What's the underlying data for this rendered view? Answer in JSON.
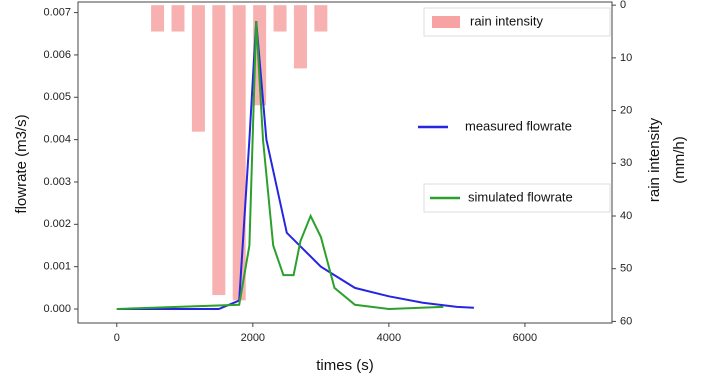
{
  "chart_data": {
    "type": "line",
    "x_label": "times (s)",
    "y_label": "flowrate (m3/s)",
    "y2_label": [
      "rain intensity",
      "(mm/h)"
    ],
    "xlim": [
      -570,
      7280
    ],
    "ylim": [
      -0.00033,
      0.00725
    ],
    "y2lim": [
      -0.6,
      60.3
    ],
    "y2_inverted": true,
    "xticks": [
      0,
      2000,
      4000,
      6000
    ],
    "yticks": [
      {
        "value": 0,
        "label": "0.000"
      },
      {
        "value": 0.001,
        "label": "0.001"
      },
      {
        "value": 0.002,
        "label": "0.002"
      },
      {
        "value": 0.003,
        "label": "0.003"
      },
      {
        "value": 0.004,
        "label": "0.004"
      },
      {
        "value": 0.005,
        "label": "0.005"
      },
      {
        "value": 0.006,
        "label": "0.006"
      },
      {
        "value": 0.007,
        "label": "0.007"
      }
    ],
    "y2ticks": [
      0,
      10,
      20,
      30,
      40,
      50,
      60
    ],
    "series": [
      {
        "name": "rain intensity",
        "type": "bar",
        "axis": "y2",
        "color": "#f7a3a3",
        "x": [
          600,
          900,
          1200,
          1500,
          1800,
          2100,
          2400,
          2700,
          3000
        ],
        "values": [
          5,
          5,
          24,
          55,
          56,
          19,
          5,
          12,
          5
        ]
      },
      {
        "name": "measured flowrate",
        "type": "line",
        "color": "#2626e0",
        "x": [
          0,
          1500,
          1800,
          1950,
          2050,
          2200,
          2500,
          3000,
          3500,
          4000,
          4500,
          5000,
          5250
        ],
        "values": [
          0,
          0,
          0.0002,
          0.004,
          0.0068,
          0.004,
          0.0018,
          0.001,
          0.0005,
          0.0003,
          0.00015,
          5e-05,
          3e-05
        ]
      },
      {
        "name": "simulated flowrate",
        "type": "line",
        "color": "#2ca02c",
        "x": [
          0,
          1800,
          1950,
          2050,
          2150,
          2300,
          2450,
          2600,
          2700,
          2850,
          3000,
          3200,
          3500,
          4000,
          4800
        ],
        "values": [
          0,
          0.0001,
          0.0015,
          0.0068,
          0.004,
          0.0015,
          0.0008,
          0.0008,
          0.0016,
          0.0022,
          0.0017,
          0.0005,
          0.0001,
          0,
          5e-05
        ]
      }
    ]
  }
}
